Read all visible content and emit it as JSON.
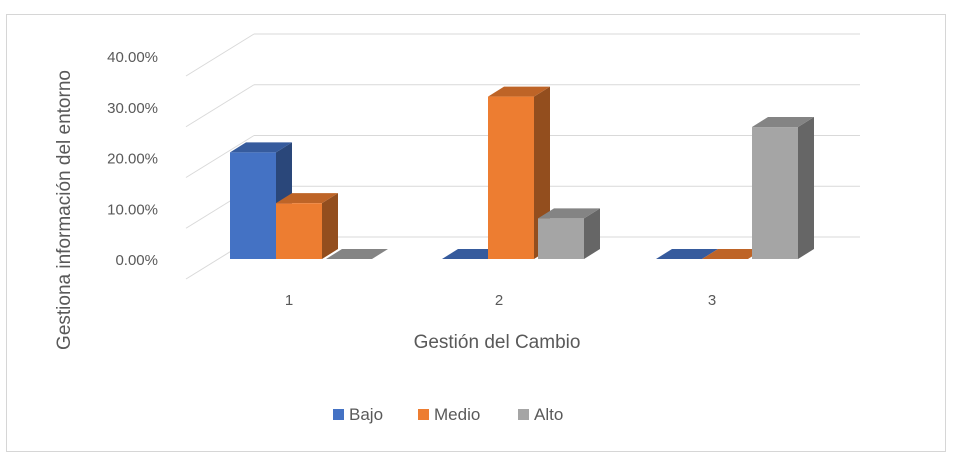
{
  "chart_data": {
    "type": "bar",
    "subtype": "3d-clustered-column",
    "categories": [
      "1",
      "2",
      "3"
    ],
    "series": [
      {
        "name": "Bajo",
        "color": "#4472C4",
        "values": [
          21.0,
          0.0,
          0.0
        ]
      },
      {
        "name": "Medio",
        "color": "#ED7D31",
        "values": [
          11.0,
          32.0,
          0.0
        ]
      },
      {
        "name": "Alto",
        "color": "#A5A5A5",
        "values": [
          0.0,
          8.0,
          26.0
        ]
      }
    ],
    "xlabel": "Gestión del Cambio",
    "ylabel": "Gestiona información del entorno",
    "ylim": [
      0,
      40
    ],
    "yticks": [
      "0.00%",
      "10.00%",
      "20.00%",
      "30.00%",
      "40.00%"
    ],
    "grid": true,
    "legend_position": "bottom"
  }
}
